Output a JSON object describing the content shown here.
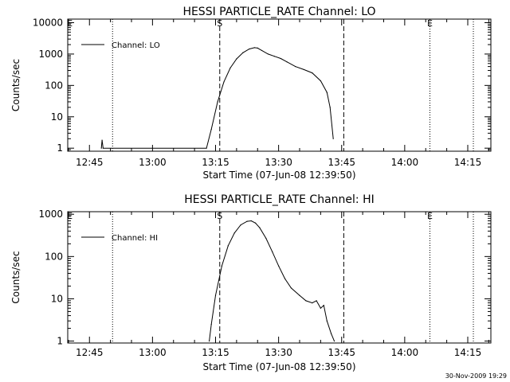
{
  "chart_data": [
    {
      "type": "line",
      "title": "HESSI PARTICLE_RATE Channel: LO",
      "xlabel": "Start Time (07-Jun-08 12:39:50)",
      "ylabel": "Counts/sec",
      "y_scale": "log",
      "xlim": [
        "12:39:50",
        "14:20:30"
      ],
      "ylim": [
        0.8,
        13000
      ],
      "x_ticks": [
        "12:45",
        "13:00",
        "13:15",
        "13:30",
        "13:45",
        "14:00",
        "14:15"
      ],
      "y_ticks": [
        "1",
        "10",
        "100",
        "1000",
        "10000"
      ],
      "legend_placement": "top-left",
      "series": [
        {
          "name": "Channel: LO",
          "x": [
            "12:47:50",
            "12:48:00",
            "12:48:15",
            "13:12:50",
            "13:14:00",
            "13:15:30",
            "13:17:00",
            "13:18:30",
            "13:20:00",
            "13:21:30",
            "13:23:00",
            "13:24:15",
            "13:25:00",
            "13:26:00",
            "13:27:30",
            "13:29:00",
            "13:30:30",
            "13:32:00",
            "13:34:00",
            "13:36:00",
            "13:38:00",
            "13:40:00",
            "13:41:30",
            "13:42:15",
            "13:43:00"
          ],
          "values": [
            1.0,
            1.8,
            1.0,
            1.0,
            4,
            30,
            130,
            360,
            700,
            1100,
            1450,
            1600,
            1550,
            1300,
            1000,
            850,
            720,
            560,
            400,
            320,
            250,
            140,
            60,
            20,
            2.0
          ]
        }
      ],
      "markers": {
        "vertical_dashed": [
          "13:16:00",
          "13:45:30"
        ],
        "vertical_dotted": [
          "12:50:30",
          "14:06:00",
          "14:16:20"
        ],
        "labels": [
          {
            "text": "E",
            "x": "12:40:20"
          },
          {
            "text": "S",
            "x": "13:16:00"
          },
          {
            "text": "E",
            "x": "14:06:00"
          }
        ]
      }
    },
    {
      "type": "line",
      "title": "HESSI PARTICLE_RATE Channel: HI",
      "xlabel": "Start Time (07-Jun-08 12:39:50)",
      "ylabel": "Counts/sec",
      "y_scale": "log",
      "xlim": [
        "12:39:50",
        "14:20:30"
      ],
      "ylim": [
        0.9,
        1150
      ],
      "x_ticks": [
        "12:45",
        "13:00",
        "13:15",
        "13:30",
        "13:45",
        "14:00",
        "14:15"
      ],
      "y_ticks": [
        "1",
        "10",
        "100",
        "1000"
      ],
      "legend_placement": "top-left",
      "series": [
        {
          "name": "Channel: HI",
          "x": [
            "13:13:30",
            "13:14:00",
            "13:15:00",
            "13:16:30",
            "13:18:00",
            "13:19:30",
            "13:21:00",
            "13:22:30",
            "13:23:30",
            "13:24:30",
            "13:25:30",
            "13:27:00",
            "13:28:30",
            "13:30:00",
            "13:31:30",
            "13:33:00",
            "13:35:00",
            "13:36:30",
            "13:38:00",
            "13:39:00",
            "13:40:00",
            "13:40:45",
            "13:41:30",
            "13:42:30",
            "13:43:15"
          ],
          "values": [
            1.0,
            2.5,
            12,
            60,
            180,
            360,
            560,
            680,
            700,
            620,
            480,
            270,
            130,
            60,
            30,
            18,
            12,
            9,
            8,
            9,
            6,
            7,
            3,
            1.5,
            1.0
          ]
        }
      ],
      "markers": {
        "vertical_dashed": [
          "13:16:00",
          "13:45:30"
        ],
        "vertical_dotted": [
          "12:50:30",
          "14:06:00",
          "14:16:20"
        ],
        "labels": [
          {
            "text": "E",
            "x": "12:40:20"
          },
          {
            "text": "S",
            "x": "13:16:00"
          },
          {
            "text": "E",
            "x": "14:06:00"
          }
        ]
      }
    }
  ],
  "footer": {
    "timestamp": "30-Nov-2009 19:29"
  }
}
